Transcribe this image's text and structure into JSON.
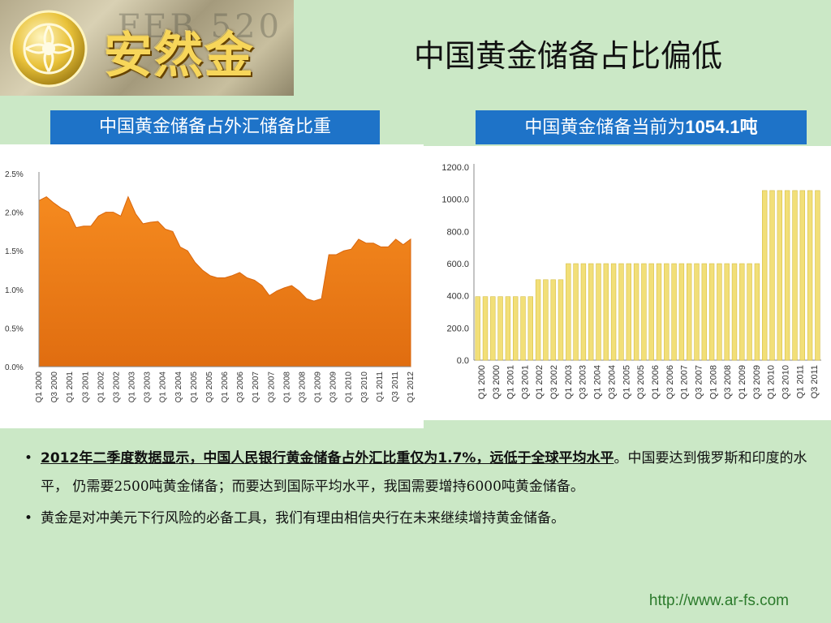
{
  "logo": {
    "text": "安然金融",
    "bill_text": "FEB 520"
  },
  "title": "中国黄金储备占比偏低",
  "left_panel": {
    "label": "中国黄金储备占外汇储备比重"
  },
  "right_panel": {
    "label_prefix": "中国黄金储备当前为",
    "label_value": "1054.1吨"
  },
  "bullets": [
    {
      "emphasis": "2012年二季度数据显示，中国人民银行黄金储备占外汇比重仅为1.7%，远低于全球平均水平",
      "text": "。中国要达到俄罗斯和印度的水平，  仍需要2500吨黄金储备；而要达到国际平均水平，我国需要增持6000吨黄金储备。"
    },
    {
      "emphasis": "",
      "text": "黄金是对冲美元下行风险的必备工具，我们有理由相信央行在未来继续增持黄金储备。"
    }
  ],
  "footer": {
    "url": "http://www.ar-fs.com"
  },
  "colors": {
    "accent": "#1e73c8",
    "area": "#f0851f",
    "bar": "#f2df78",
    "bar_stroke": "#d6bf45"
  },
  "chart_data": [
    {
      "type": "area",
      "title": "中国黄金储备占外汇储备比重",
      "ylim": [
        0,
        2.5
      ],
      "yticks": [
        "0.0%",
        "0.5%",
        "1.0%",
        "1.5%",
        "2.0%",
        "2.5%"
      ],
      "xticks": [
        "Q1 2000",
        "Q3 2000",
        "Q1 2001",
        "Q3 2001",
        "Q1 2002",
        "Q3 2002",
        "Q1 2003",
        "Q3 2003",
        "Q1 2004",
        "Q3 2004",
        "Q1 2005",
        "Q3 2005",
        "Q1 2006",
        "Q3 2006",
        "Q1 2007",
        "Q3 2007",
        "Q1 2008",
        "Q3 2008",
        "Q1 2009",
        "Q3 2009",
        "Q1 2010",
        "Q3 2010",
        "Q1 2011",
        "Q3 2011",
        "Q1 2012"
      ],
      "values": [
        2.15,
        2.2,
        2.12,
        2.05,
        2.0,
        1.8,
        1.82,
        1.82,
        1.95,
        2.0,
        2.0,
        1.95,
        2.2,
        1.98,
        1.85,
        1.87,
        1.88,
        1.78,
        1.75,
        1.55,
        1.5,
        1.35,
        1.25,
        1.18,
        1.15,
        1.15,
        1.18,
        1.22,
        1.15,
        1.12,
        1.05,
        0.92,
        0.98,
        1.02,
        1.05,
        0.98,
        0.88,
        0.85,
        0.88,
        1.45,
        1.45,
        1.5,
        1.52,
        1.65,
        1.6,
        1.6,
        1.55,
        1.55,
        1.65,
        1.58,
        1.65
      ],
      "grid": false
    },
    {
      "type": "bar",
      "title": "中国黄金储备当前为1054.1吨",
      "ylim": [
        0,
        1200
      ],
      "yticks": [
        "0.0",
        "200.0",
        "400.0",
        "600.0",
        "800.0",
        "1000.0",
        "1200.0"
      ],
      "xticks": [
        "Q1 2000",
        "Q3 2000",
        "Q1 2001",
        "Q3 2001",
        "Q1 2002",
        "Q3 2002",
        "Q1 2003",
        "Q3 2003",
        "Q1 2004",
        "Q3 2004",
        "Q1 2005",
        "Q3 2005",
        "Q1 2006",
        "Q3 2006",
        "Q1 2007",
        "Q3 2007",
        "Q1 2008",
        "Q3 2008",
        "Q1 2009",
        "Q3 2009",
        "Q1 2010",
        "Q3 2010",
        "Q1 2011",
        "Q3 2011"
      ],
      "values": [
        395,
        395,
        395,
        395,
        395,
        395,
        395,
        395,
        500,
        500,
        500,
        500,
        600,
        600,
        600,
        600,
        600,
        600,
        600,
        600,
        600,
        600,
        600,
        600,
        600,
        600,
        600,
        600,
        600,
        600,
        600,
        600,
        600,
        600,
        600,
        600,
        600,
        600,
        1054.1,
        1054.1,
        1054.1,
        1054.1,
        1054.1,
        1054.1,
        1054.1,
        1054.1
      ],
      "grid": false
    }
  ]
}
